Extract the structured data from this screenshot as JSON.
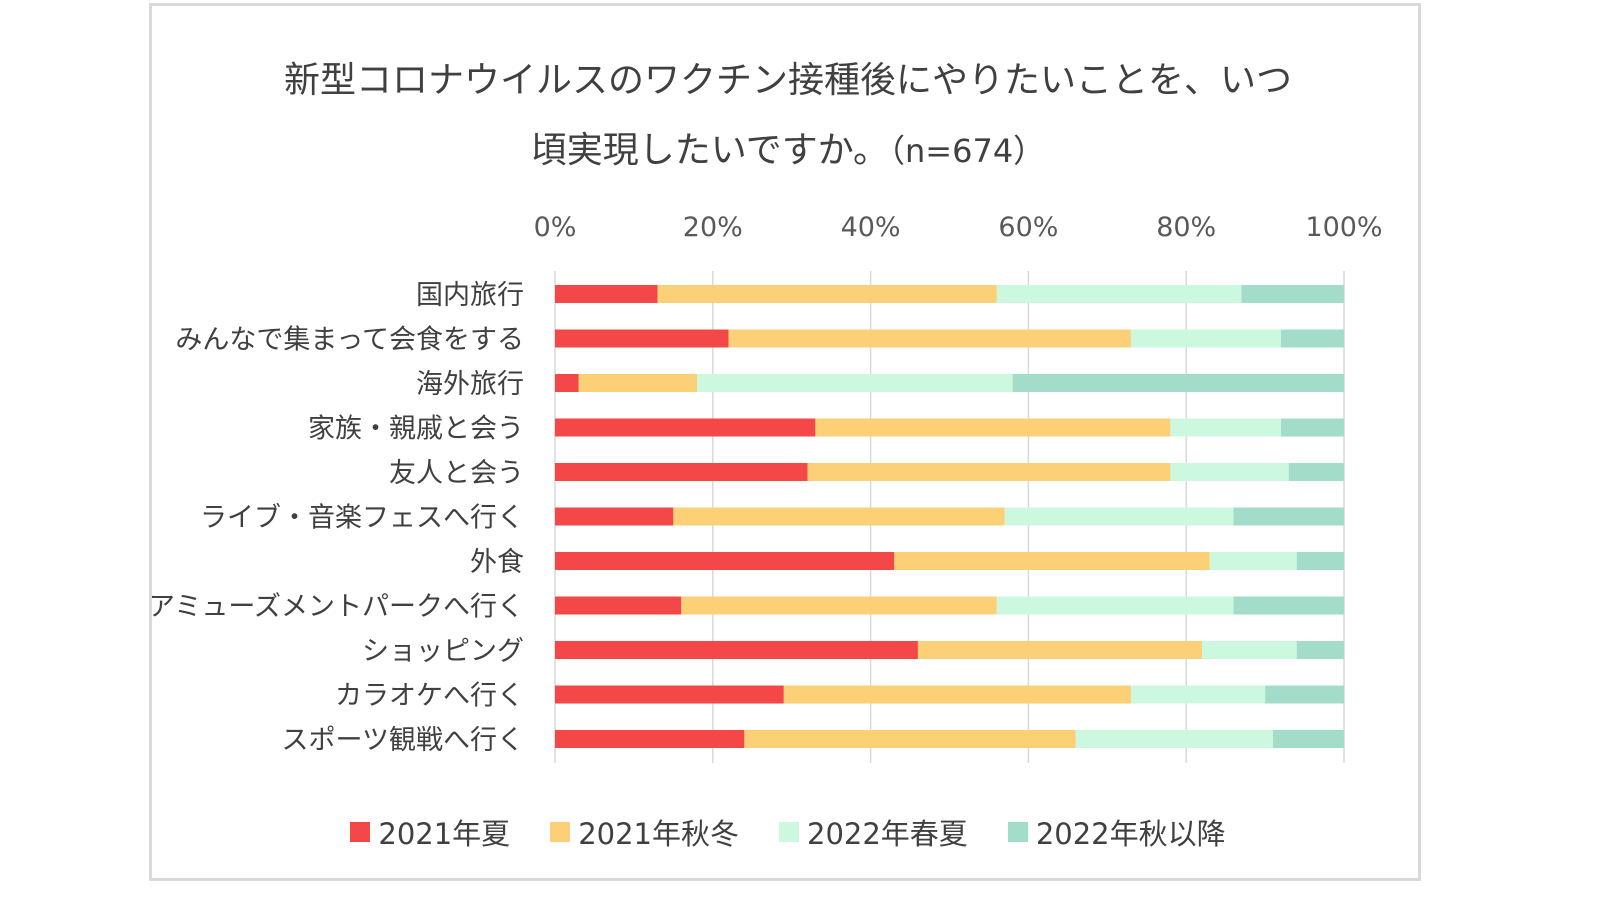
{
  "chart_data": {
    "type": "bar",
    "orientation": "horizontal",
    "stacked": true,
    "title_line1": "新型コロナウイルスのワクチン接種後にやりたいことを、いつ",
    "title_line2": "頃実現したいですか。",
    "title_note": "（n=674）",
    "xlim": [
      0,
      100
    ],
    "x_ticks": [
      "0%",
      "20%",
      "40%",
      "60%",
      "80%",
      "100%"
    ],
    "grid": true,
    "legend_position": "bottom",
    "categories": [
      "国内旅行",
      "みんなで集まって会食をする",
      "海外旅行",
      "家族・親戚と会う",
      "友人と会う",
      "ライブ・音楽フェスへ行く",
      "外食",
      "アミューズメントパークへ行く",
      "ショッピング",
      "カラオケへ行く",
      "スポーツ観戦へ行く"
    ],
    "series": [
      {
        "name": "2021年夏",
        "color": "#f44848",
        "values": [
          13,
          22,
          3,
          33,
          32,
          15,
          43,
          16,
          46,
          29,
          24
        ]
      },
      {
        "name": "2021年秋冬",
        "color": "#fcd077",
        "values": [
          43,
          51,
          15,
          45,
          46,
          42,
          40,
          40,
          36,
          44,
          42
        ]
      },
      {
        "name": "2022年春夏",
        "color": "#ccf8e0",
        "values": [
          31,
          19,
          40,
          14,
          15,
          29,
          11,
          30,
          12,
          17,
          25
        ]
      },
      {
        "name": "2022年秋以降",
        "color": "#a3dcc9",
        "values": [
          13,
          8,
          42,
          8,
          7,
          14,
          6,
          14,
          6,
          10,
          9
        ]
      }
    ]
  }
}
